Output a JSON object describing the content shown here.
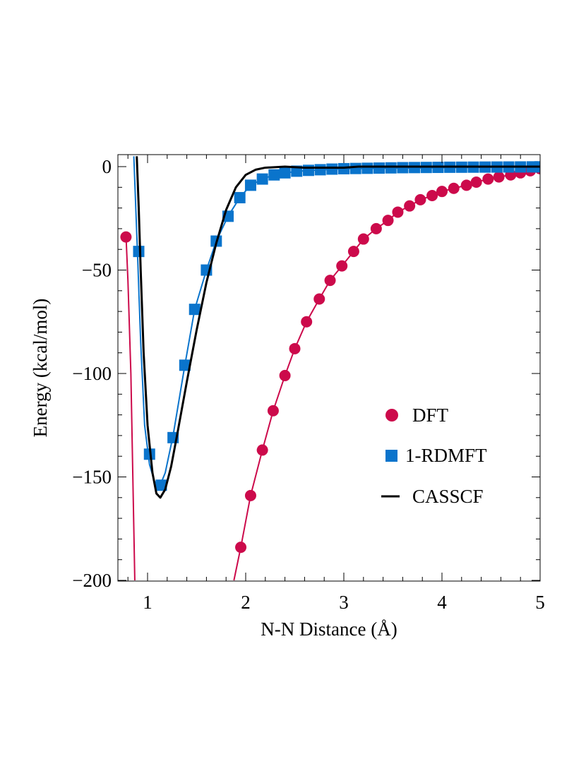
{
  "chart_data": {
    "type": "line",
    "title": "",
    "xlabel": "N-N Distance (Å)",
    "ylabel": "Energy (kcal/mol)",
    "xlim": [
      0.7,
      5.0
    ],
    "ylim": [
      -200,
      5
    ],
    "x_ticks": [
      1,
      2,
      3,
      4,
      5
    ],
    "x_tick_labels": [
      "1",
      "2",
      "3",
      "4",
      "5"
    ],
    "y_ticks": [
      0,
      -50,
      -100,
      -150,
      -200
    ],
    "y_tick_labels": [
      "0",
      "−50",
      "−100",
      "−150",
      "−200"
    ],
    "legend_position": "right",
    "colors": {
      "dft": "#cc0a4b",
      "rdmft": "#0a74cc",
      "casscf": "#000000"
    },
    "series": [
      {
        "name": "DFT",
        "key": "dft",
        "marker": "circle",
        "curve_x": [
          0.78,
          0.8,
          0.83,
          0.85,
          0.87,
          1.88,
          1.95,
          2.05,
          2.17,
          2.28,
          2.4,
          2.5,
          2.62,
          2.75,
          2.86,
          2.98,
          3.1,
          3.2,
          3.33,
          3.45,
          3.55,
          3.67,
          3.78,
          3.9,
          4.0,
          4.12,
          4.25,
          4.35,
          4.47,
          4.58,
          4.7,
          4.8,
          4.9,
          5.0
        ],
        "curve_y": [
          -33,
          -55,
          -100,
          -150,
          -200,
          -200,
          -184,
          -159,
          -137,
          -118,
          -101,
          -88,
          -75,
          -64,
          -55,
          -48,
          -41,
          -35,
          -30,
          -26,
          -22,
          -19,
          -16,
          -14,
          -12,
          -10.5,
          -9,
          -7.5,
          -6,
          -5,
          -4,
          -3,
          -2,
          -1
        ],
        "x": [
          0.78,
          1.95,
          2.05,
          2.17,
          2.28,
          2.4,
          2.5,
          2.62,
          2.75,
          2.86,
          2.98,
          3.1,
          3.2,
          3.33,
          3.45,
          3.55,
          3.67,
          3.78,
          3.9,
          4.0,
          4.12,
          4.25,
          4.35,
          4.47,
          4.58,
          4.7,
          4.8,
          4.9,
          5.0
        ],
        "y": [
          -34,
          -184,
          -159,
          -137,
          -118,
          -101,
          -88,
          -75,
          -64,
          -55,
          -48,
          -41,
          -35,
          -30,
          -26,
          -22,
          -19,
          -16,
          -14,
          -12,
          -10.5,
          -9,
          -7.5,
          -6,
          -5,
          -4,
          -3,
          -2,
          -1
        ]
      },
      {
        "name": "1-RDMFT",
        "key": "rdmft",
        "marker": "square",
        "curve_x": [
          0.86,
          0.88,
          0.9,
          0.93,
          0.97,
          1.02,
          1.07,
          1.12,
          1.18,
          1.26,
          1.38,
          1.48,
          1.6,
          1.7,
          1.82,
          1.94,
          2.05,
          2.17,
          2.29,
          2.4,
          2.6,
          2.8,
          3.0,
          3.4,
          4.0,
          4.5,
          5.0
        ],
        "curve_y": [
          5,
          -20,
          -45,
          -85,
          -125,
          -144,
          -152,
          -155,
          -148,
          -130,
          -96,
          -69,
          -50,
          -36,
          -24,
          -15,
          -9,
          -6,
          -4,
          -3,
          -2,
          -1.5,
          -1,
          -0.8,
          -0.5,
          -0.3,
          -0.2
        ],
        "x": [
          0.91,
          1.02,
          1.14,
          1.26,
          1.38,
          1.48,
          1.6,
          1.7,
          1.82,
          1.94,
          2.05,
          2.17,
          2.29,
          2.4,
          2.52,
          2.64,
          2.76,
          2.88,
          3.0,
          3.12,
          3.24,
          3.36,
          3.48,
          3.6,
          3.72,
          3.84,
          3.96,
          4.08,
          4.2,
          4.32,
          4.44,
          4.56,
          4.68,
          4.8,
          4.92,
          5.0
        ],
        "y": [
          -41,
          -139,
          -154,
          -131,
          -96,
          -69,
          -50,
          -36,
          -24,
          -15,
          -9,
          -6,
          -4,
          -3,
          -2.2,
          -1.8,
          -1.5,
          -1.2,
          -1.0,
          -0.9,
          -0.8,
          -0.7,
          -0.6,
          -0.5,
          -0.45,
          -0.4,
          -0.35,
          -0.3,
          -0.28,
          -0.25,
          -0.22,
          -0.2,
          -0.18,
          -0.15,
          -0.12,
          -0.1
        ]
      },
      {
        "name": "CASSCF",
        "key": "casscf",
        "marker": "line",
        "curve_x": [
          0.89,
          0.91,
          0.93,
          0.96,
          1.0,
          1.05,
          1.09,
          1.13,
          1.18,
          1.24,
          1.3,
          1.4,
          1.5,
          1.6,
          1.7,
          1.8,
          1.9,
          2.0,
          2.1,
          2.2,
          2.4,
          2.6,
          2.8,
          3.0,
          3.15,
          3.4,
          3.8,
          4.2,
          4.6,
          5.0,
          5.05
        ],
        "curve_y": [
          5,
          -20,
          -50,
          -90,
          -125,
          -148,
          -158,
          -160,
          -156,
          -145,
          -130,
          -104,
          -79,
          -56,
          -37,
          -21,
          -10,
          -4,
          -1.5,
          -0.5,
          0,
          -0.5,
          -0.5,
          -0.5,
          0,
          0,
          0,
          0,
          0,
          0,
          0
        ]
      }
    ]
  }
}
